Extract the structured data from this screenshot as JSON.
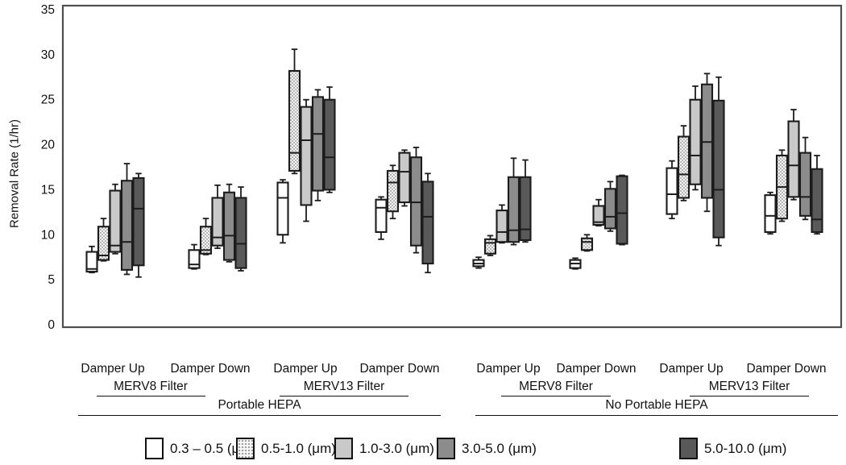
{
  "chart_data": {
    "type": "boxplot",
    "title": "",
    "ylabel": "Removal Rate (1/hr)",
    "xlabel": "",
    "ylim": [
      0,
      35
    ],
    "yticks": [
      0,
      5,
      10,
      15,
      20,
      25,
      30,
      35
    ],
    "grid": false,
    "legend_position": "bottom",
    "box_value_order": [
      "low",
      "q1",
      "median",
      "q3",
      "high"
    ],
    "series": [
      {
        "name": "0.3 – 0.5 (μm)",
        "style": "white"
      },
      {
        "name": "0.5-1.0 (μm)",
        "style": "stipple"
      },
      {
        "name": "1.0-3.0 (μm)",
        "style": "lightgray"
      },
      {
        "name": "3.0-5.0 (μm)",
        "style": "midgray"
      },
      {
        "name": "5.0-10.0 (μm)",
        "style": "darkgray"
      }
    ],
    "colors": {
      "white": "#ffffff",
      "stipple_bg": "#f4f4f4",
      "stipple_dot": "#8a8a8a",
      "lightgray": "#c9c9c9",
      "midgray": "#8c8c8c",
      "darkgray": "#595959",
      "stroke": "#1c1c1c",
      "frame": "#4f4f4f"
    },
    "group_labels": {
      "damper": [
        "Damper Up",
        "Damper Down",
        "Damper Up",
        "Damper Down",
        "Damper Up",
        "Damper Down",
        "Damper Up",
        "Damper Down"
      ],
      "filter": [
        "MERV8 Filter",
        "MERV13 Filter",
        "MERV8 Filter",
        "MERV13 Filter"
      ],
      "hepa": [
        "Portable HEPA",
        "No Portable HEPA"
      ]
    },
    "groups": [
      {
        "hepa": "Portable HEPA",
        "filter": "MERV8 Filter",
        "damper": "Damper Up",
        "boxes": [
          [
            5.8,
            5.9,
            6.2,
            8.1,
            8.7
          ],
          [
            7.1,
            7.2,
            7.7,
            10.9,
            11.8
          ],
          [
            7.9,
            8.1,
            8.8,
            14.9,
            15.6
          ],
          [
            5.6,
            6.1,
            9.2,
            16.0,
            17.9
          ],
          [
            5.3,
            6.6,
            12.9,
            16.3,
            16.8
          ]
        ]
      },
      {
        "hepa": "Portable HEPA",
        "filter": "MERV8 Filter",
        "damper": "Damper Down",
        "boxes": [
          [
            6.2,
            6.3,
            6.7,
            8.3,
            8.9
          ],
          [
            7.8,
            7.9,
            8.3,
            10.9,
            11.8
          ],
          [
            8.5,
            8.8,
            9.7,
            14.1,
            15.5
          ],
          [
            7.0,
            7.2,
            9.9,
            14.7,
            15.6
          ],
          [
            6.0,
            6.3,
            9.0,
            14.1,
            15.3
          ]
        ]
      },
      {
        "hepa": "Portable HEPA",
        "filter": "MERV13 Filter",
        "damper": "Damper Up",
        "boxes": [
          [
            9.1,
            10.0,
            14.1,
            15.8,
            16.1
          ],
          [
            16.8,
            17.1,
            19.1,
            28.2,
            30.6
          ],
          [
            11.5,
            13.3,
            20.5,
            24.2,
            25.0
          ],
          [
            13.8,
            14.9,
            21.2,
            25.3,
            26.1
          ],
          [
            14.7,
            15.0,
            18.6,
            25.0,
            26.4
          ]
        ]
      },
      {
        "hepa": "Portable HEPA",
        "filter": "MERV13 Filter",
        "damper": "Damper Down",
        "boxes": [
          [
            9.5,
            10.3,
            13.0,
            13.9,
            14.2
          ],
          [
            11.8,
            12.6,
            15.8,
            17.1,
            17.7
          ],
          [
            13.2,
            13.6,
            17.0,
            19.1,
            19.4
          ],
          [
            8.0,
            8.8,
            13.6,
            18.6,
            19.7
          ],
          [
            5.8,
            6.8,
            12.0,
            15.9,
            16.8
          ]
        ]
      },
      {
        "hepa": "No Portable HEPA",
        "filter": "MERV8 Filter",
        "damper": "Damper Up",
        "boxes": [
          [
            6.3,
            6.5,
            6.8,
            7.2,
            7.5
          ],
          [
            7.7,
            7.9,
            9.1,
            9.5,
            9.9
          ],
          [
            9.1,
            9.2,
            10.3,
            12.7,
            13.3
          ],
          [
            8.9,
            9.2,
            10.5,
            16.4,
            18.5
          ],
          [
            9.2,
            9.4,
            10.6,
            16.4,
            18.3
          ]
        ]
      },
      {
        "hepa": "No Portable HEPA",
        "filter": "MERV8 Filter",
        "damper": "Damper Down",
        "boxes": [
          [
            6.2,
            6.3,
            6.8,
            7.2,
            7.4
          ],
          [
            8.2,
            8.3,
            9.2,
            9.6,
            10.0
          ],
          [
            11.0,
            11.1,
            11.4,
            13.2,
            13.9
          ],
          [
            10.4,
            10.7,
            12.0,
            15.1,
            15.9
          ],
          [
            8.9,
            9.0,
            12.4,
            16.5,
            16.6
          ]
        ]
      },
      {
        "hepa": "No Portable HEPA",
        "filter": "MERV13 Filter",
        "damper": "Damper Up",
        "boxes": [
          [
            11.8,
            12.3,
            14.5,
            17.4,
            18.2
          ],
          [
            13.8,
            14.1,
            16.7,
            20.9,
            22.1
          ],
          [
            15.0,
            15.6,
            18.8,
            25.0,
            26.5
          ],
          [
            12.6,
            14.1,
            20.3,
            26.7,
            27.9
          ],
          [
            8.8,
            9.7,
            15.0,
            24.9,
            27.5
          ]
        ]
      },
      {
        "hepa": "No Portable HEPA",
        "filter": "MERV13 Filter",
        "damper": "Damper Down",
        "boxes": [
          [
            10.1,
            10.3,
            12.1,
            14.4,
            14.7
          ],
          [
            11.5,
            11.8,
            15.3,
            18.8,
            19.4
          ],
          [
            13.9,
            14.2,
            17.7,
            22.6,
            23.9
          ],
          [
            11.7,
            12.1,
            14.2,
            19.1,
            20.8
          ],
          [
            10.1,
            10.3,
            11.7,
            17.3,
            18.8
          ]
        ]
      }
    ]
  }
}
